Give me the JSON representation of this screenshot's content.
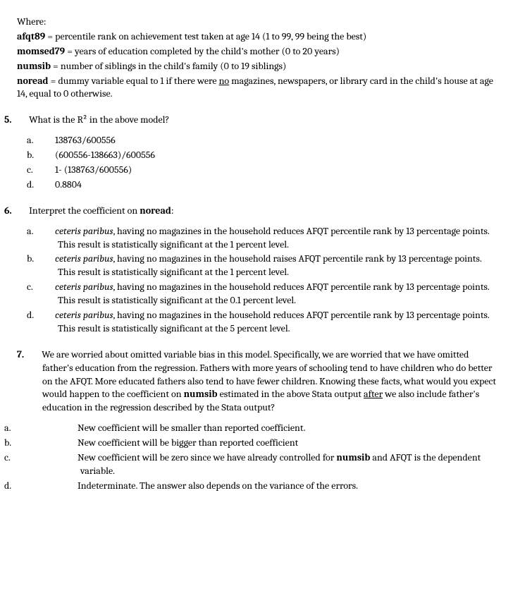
{
  "where_label": "Where:",
  "defs": {
    "afqt89_label": "afqt89",
    "afqt89_text": " = percentile rank on achievement test taken at age 14 (1 to 99, 99 being the best)",
    "momsed79_label": "momsed79",
    "momsed79_text": " = years of education completed by the child's mother (0 to 20 years)",
    "numsib_label": "numsib",
    "numsib_text": " = number of siblings in the child's family (0 to 19 siblings)",
    "noread_label": "noread",
    "noread_text_before": " = dummy variable equal to 1 if there were ",
    "noread_no": "no",
    "noread_text_after": " magazines, newspapers, or library card in the child's house at age 14, equal to 0 otherwise."
  },
  "q5": {
    "num": "5.",
    "text": "What is the R² in the above model?",
    "a": "138763/600556",
    "b": "(600556-138663)/600556",
    "c": "1- (138763/600556)",
    "d": "0.8804"
  },
  "q6": {
    "num": "6.",
    "text_before": "Interpret the coefficient on ",
    "bold": "noread",
    "text_after": ":",
    "a_i": "ceteris paribus",
    "a_r": ", having no magazines in the household reduces AFQT percentile rank by 13 percentage points. This result is statistically significant at the 1 percent level.",
    "b_i": "ceteris paribus",
    "b_r": ", having no magazines in the household raises AFQT percentile rank by 13 percentage points. This result is statistically significant at the 1 percent level.",
    "c_i": "ceteris paribus",
    "c_r": ", having no magazines in the household reduces AFQT percentile rank by 13 percentage points. This result is statistically significant at the 0.1 percent level.",
    "d_i": "ceteris paribus",
    "d_r": ", having no magazines in the household reduces AFQT percentile rank by 13 percentage points. This result is statistically significant at the 5 percent level."
  },
  "q7": {
    "num": "7.",
    "p1": "We are worried about omitted variable bias in this model. Specifically, we are worried that we have omitted father's education from the regression. Fathers with more years of schooling tend to have children who do better on the AFQT. More educated fathers also tend to have fewer children. Knowing these facts, what would you expect would happen to the coefficient on ",
    "numsib": "numsib",
    "p2": " estimated in the above Stata output ",
    "after": "after",
    "p3": " we also include father's education in the regression described by the Stata output?",
    "a": "New coefficient will be smaller than reported coefficient.",
    "b": "New coefficient will be bigger than reported coefficient",
    "c_before": "New coefficient will be zero since we have already controlled for ",
    "c_bold": "numsib",
    "c_after": " and AFQT is the dependent variable.",
    "d": "Indeterminate. The answer also depends on the variance of the errors."
  },
  "letters": {
    "a": "a.",
    "b": "b.",
    "c": "c.",
    "d": "d."
  }
}
